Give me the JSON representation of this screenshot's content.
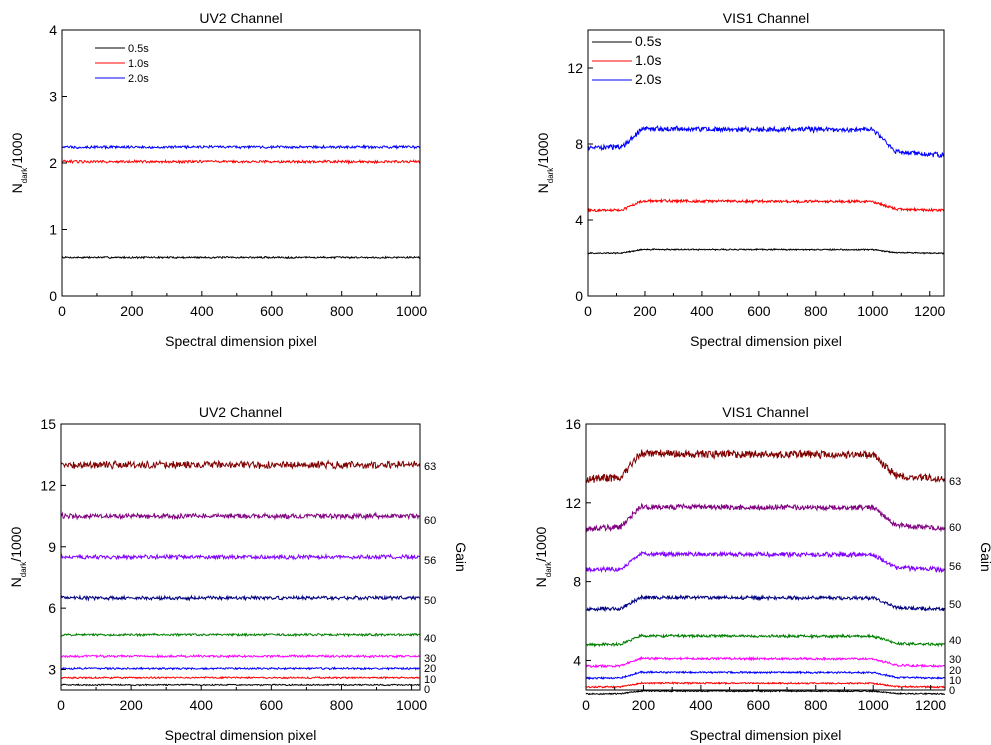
{
  "chart_data": [
    {
      "id": "p1",
      "type": "line",
      "title": "UV2 Channel",
      "xlabel": "Spectral dimension pixel",
      "ylabel_main": "N",
      "ylabel_sub": "dark",
      "ylabel_tail": "/1000",
      "xlim": [
        0,
        1024
      ],
      "ylim": [
        0,
        4
      ],
      "xticks": [
        0,
        200,
        400,
        600,
        800,
        1000
      ],
      "yticks": [
        0,
        1,
        2,
        3,
        4
      ],
      "legend_position": "top-left",
      "series": [
        {
          "name": "0.5s",
          "color": "#000000",
          "profile": "flat",
          "base": 0.58,
          "noise": 0.012
        },
        {
          "name": "1.0s",
          "color": "#ff0000",
          "profile": "flat",
          "base": 2.02,
          "noise": 0.018
        },
        {
          "name": "2.0s",
          "color": "#0000ff",
          "profile": "flat",
          "base": 2.24,
          "noise": 0.018
        }
      ]
    },
    {
      "id": "p2",
      "type": "line",
      "title": "VIS1 Channel",
      "xlabel": "Spectral dimension pixel",
      "ylabel_main": "N",
      "ylabel_sub": "dark",
      "ylabel_tail": "/1000",
      "xlim": [
        0,
        1250
      ],
      "ylim": [
        0,
        14
      ],
      "xticks": [
        0,
        200,
        400,
        600,
        800,
        1000,
        1200
      ],
      "yticks": [
        0,
        4,
        8,
        12
      ],
      "legend_position": "top-left",
      "series": [
        {
          "name": "0.5s",
          "color": "#000000",
          "profile": "hump",
          "edge": 2.25,
          "plateau": 2.45,
          "noise": 0.03
        },
        {
          "name": "1.0s",
          "color": "#ff0000",
          "profile": "hump",
          "edge": 4.5,
          "plateau": 5.0,
          "noise": 0.06
        },
        {
          "name": "2.0s",
          "color": "#0000ff",
          "profile": "hump",
          "edge": 7.8,
          "plateau": 8.8,
          "end": 7.4,
          "noise": 0.12
        }
      ]
    },
    {
      "id": "p3",
      "type": "line",
      "title": "UV2 Channel",
      "xlabel": "Spectral dimension pixel",
      "ylabel_main": "N",
      "ylabel_sub": "dark",
      "ylabel_tail": "/1000",
      "right_label": "Gain",
      "xlim": [
        0,
        1024
      ],
      "ylim": [
        2,
        15
      ],
      "xticks": [
        0,
        200,
        400,
        600,
        800,
        1000
      ],
      "yticks": [
        3,
        6,
        9,
        12,
        15
      ],
      "series": [
        {
          "name": "0",
          "color": "#000000",
          "profile": "flat",
          "base": 2.25,
          "noise": 0.03
        },
        {
          "name": "10",
          "color": "#ff0000",
          "profile": "flat",
          "base": 2.6,
          "noise": 0.035
        },
        {
          "name": "20",
          "color": "#0000ff",
          "profile": "flat",
          "base": 3.05,
          "noise": 0.04
        },
        {
          "name": "30",
          "color": "#ff00ff",
          "profile": "flat",
          "base": 3.65,
          "noise": 0.05
        },
        {
          "name": "40",
          "color": "#008000",
          "profile": "flat",
          "base": 4.7,
          "noise": 0.05
        },
        {
          "name": "50",
          "color": "#000080",
          "profile": "flat",
          "base": 6.5,
          "noise": 0.08
        },
        {
          "name": "56",
          "color": "#8000ff",
          "profile": "flat",
          "base": 8.5,
          "noise": 0.09
        },
        {
          "name": "60",
          "color": "#800080",
          "profile": "flat",
          "base": 10.5,
          "noise": 0.11
        },
        {
          "name": "63",
          "color": "#800000",
          "profile": "flat",
          "base": 13.0,
          "noise": 0.16
        }
      ]
    },
    {
      "id": "p4",
      "type": "line",
      "title": "VIS1 Channel",
      "xlabel": "Spectral dimension pixel",
      "ylabel_main": "N",
      "ylabel_sub": "dark",
      "ylabel_tail": "/1000",
      "right_label": "Gain",
      "xlim": [
        0,
        1250
      ],
      "ylim": [
        2.5,
        16
      ],
      "xticks": [
        0,
        200,
        400,
        600,
        800,
        1000,
        1200
      ],
      "yticks": [
        4,
        8,
        12,
        16
      ],
      "series": [
        {
          "name": "0",
          "color": "#000000",
          "profile": "hump",
          "edge": 2.3,
          "plateau": 2.45,
          "noise": 0.03
        },
        {
          "name": "10",
          "color": "#ff0000",
          "profile": "hump",
          "edge": 2.65,
          "plateau": 2.85,
          "noise": 0.035
        },
        {
          "name": "20",
          "color": "#0000ff",
          "profile": "hump",
          "edge": 3.1,
          "plateau": 3.4,
          "noise": 0.04
        },
        {
          "name": "30",
          "color": "#ff00ff",
          "profile": "hump",
          "edge": 3.7,
          "plateau": 4.1,
          "noise": 0.05
        },
        {
          "name": "40",
          "color": "#008000",
          "profile": "hump",
          "edge": 4.8,
          "plateau": 5.25,
          "noise": 0.06
        },
        {
          "name": "50",
          "color": "#000080",
          "profile": "hump",
          "edge": 6.6,
          "plateau": 7.2,
          "noise": 0.08
        },
        {
          "name": "56",
          "color": "#8000ff",
          "profile": "hump",
          "edge": 8.6,
          "plateau": 9.4,
          "noise": 0.1
        },
        {
          "name": "60",
          "color": "#800080",
          "profile": "hump",
          "edge": 10.7,
          "plateau": 11.8,
          "noise": 0.12
        },
        {
          "name": "63",
          "color": "#800000",
          "profile": "hump",
          "edge": 13.2,
          "plateau": 14.5,
          "noise": 0.18
        }
      ]
    }
  ]
}
